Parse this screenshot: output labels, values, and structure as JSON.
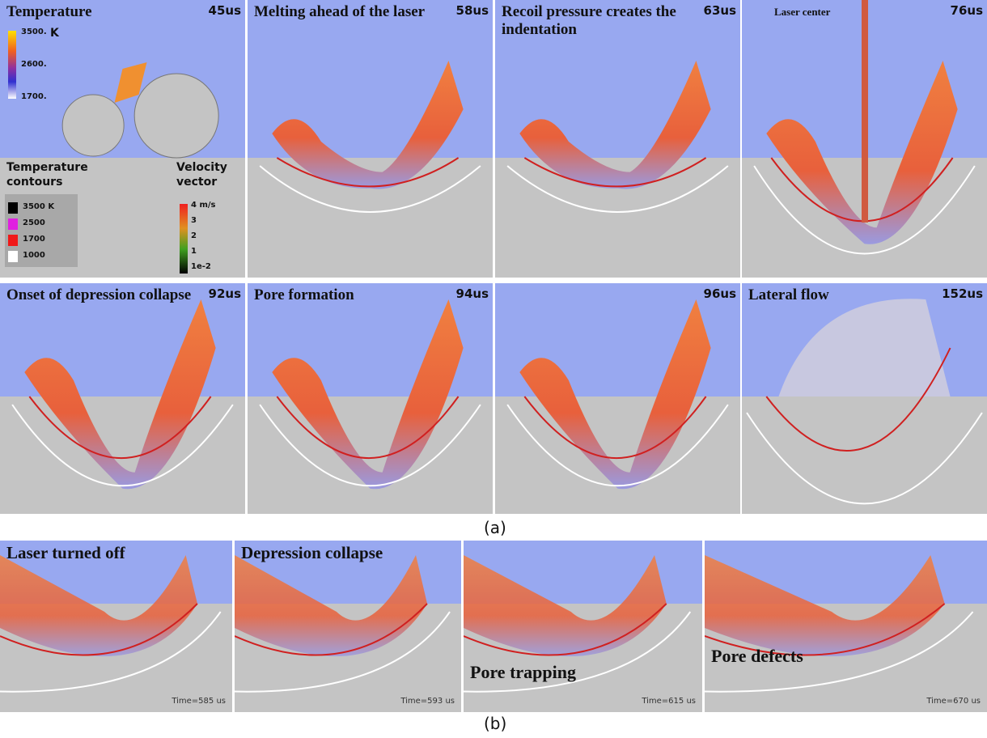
{
  "panels_a": [
    {
      "title": "Temperature",
      "time": "45us"
    },
    {
      "title": "Melting ahead of the laser",
      "time": "58us"
    },
    {
      "title": "Recoil pressure creates the indentation",
      "time": "63us"
    },
    {
      "annotation": "Laser center",
      "time": "76us"
    },
    {
      "title": "Onset of depression collapse",
      "time": "92us"
    },
    {
      "title": "Pore formation",
      "time": "94us"
    },
    {
      "time": "96us"
    },
    {
      "title": "Lateral flow",
      "time": "152us"
    }
  ],
  "legend": {
    "temperature": {
      "unit": "K",
      "ticks": [
        "3500.",
        "2600.",
        "1700."
      ]
    },
    "contours": {
      "title": "Temperature contours",
      "items": [
        "3500 K",
        "2500",
        "1700",
        "1000"
      ]
    },
    "velocity": {
      "title": "Velocity vector",
      "ticks": [
        "4 m/s",
        "3",
        "2",
        "1",
        "1e-2"
      ]
    }
  },
  "label_a": "(a)",
  "panels_b": [
    {
      "title": "Laser turned off",
      "time": "Time=585 us"
    },
    {
      "title": "Depression collapse",
      "time": "Time=593 us"
    },
    {
      "annotation": "Pore trapping",
      "time": "Time=615 us"
    },
    {
      "annotation": "Pore defects",
      "time": "Time=670 us"
    }
  ],
  "label_b": "(b)"
}
